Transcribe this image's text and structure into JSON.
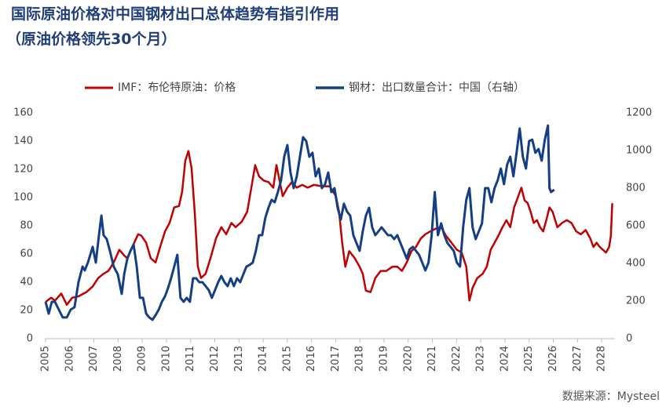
{
  "chart_data": {
    "type": "line",
    "title": "国际原油价格对中国钢材出口总体趋势有指引作用",
    "subtitle": "（原油价格领先30个月）",
    "source": "数据来源：Mysteel",
    "legend": "top",
    "xlim": [
      2005,
      2028.55
    ],
    "xticks": [
      2005,
      2006,
      2007,
      2008,
      2009,
      2010,
      2011,
      2012,
      2013,
      2014,
      2015,
      2016,
      2017,
      2018,
      2019,
      2020,
      2021,
      2022,
      2023,
      2024,
      2025,
      2026,
      2027,
      2028
    ],
    "ylim": [
      0,
      160
    ],
    "yticks": [
      0,
      20,
      40,
      60,
      80,
      100,
      120,
      140,
      160
    ],
    "y2lim": [
      0,
      1200
    ],
    "y2ticks": [
      0,
      200,
      400,
      600,
      800,
      1000,
      1200
    ],
    "series": [
      {
        "name": "IMF：布伦特原油：价格",
        "color": "#c00000",
        "x": [
          2005.0,
          2005.23,
          2005.39,
          2005.65,
          2005.88,
          2006.1,
          2006.36,
          2006.69,
          2006.95,
          2007.18,
          2007.4,
          2007.6,
          2007.82,
          2008.05,
          2008.25,
          2008.38,
          2008.64,
          2008.83,
          2008.96,
          2009.16,
          2009.35,
          2009.55,
          2009.74,
          2009.94,
          2010.13,
          2010.32,
          2010.52,
          2010.65,
          2010.78,
          2010.91,
          2011.04,
          2011.17,
          2011.3,
          2011.43,
          2011.62,
          2011.82,
          2012.05,
          2012.27,
          2012.47,
          2012.69,
          2012.86,
          2013.12,
          2013.34,
          2013.51,
          2013.67,
          2013.83,
          2014.03,
          2014.22,
          2014.42,
          2014.55,
          2014.68,
          2014.81,
          2015.0,
          2015.19,
          2015.39,
          2015.62,
          2015.84,
          2016.1,
          2016.43,
          2016.75,
          2017.01,
          2017.14,
          2017.27,
          2017.4,
          2017.56,
          2017.79,
          2017.99,
          2018.12,
          2018.25,
          2018.44,
          2018.64,
          2018.86,
          2019.09,
          2019.35,
          2019.55,
          2019.74,
          2019.94,
          2020.13,
          2020.32,
          2020.52,
          2020.71,
          2020.91,
          2021.14,
          2021.36,
          2021.56,
          2021.79,
          2022.01,
          2022.21,
          2022.4,
          2022.53,
          2022.66,
          2022.86,
          2023.08,
          2023.25,
          2023.41,
          2023.57,
          2023.73,
          2023.9,
          2024.06,
          2024.22,
          2024.38,
          2024.55,
          2024.68,
          2024.81,
          2024.94,
          2025.06,
          2025.19,
          2025.32,
          2025.45,
          2025.58,
          2025.71,
          2025.84,
          2025.97,
          2026.17,
          2026.36,
          2026.56,
          2026.75,
          2026.95,
          2027.14,
          2027.34,
          2027.53,
          2027.66,
          2027.79,
          2027.92,
          2028.05,
          2028.18,
          2028.31,
          2028.38,
          2028.44
        ],
        "values": [
          26,
          29,
          27,
          32,
          24,
          29,
          30,
          33,
          37,
          43,
          46,
          48,
          54,
          63,
          59,
          57,
          67,
          74,
          73,
          68,
          57,
          54,
          65,
          76,
          82,
          93,
          94,
          104,
          126,
          133,
          121,
          90,
          51,
          43,
          46,
          57,
          71,
          79,
          74,
          82,
          79,
          83,
          90,
          107,
          123,
          115,
          112,
          111,
          107,
          123,
          112,
          101,
          107,
          111,
          107,
          109,
          107,
          109,
          108,
          108,
          101,
          90,
          68,
          51,
          62,
          57,
          51,
          46,
          34,
          33,
          43,
          48,
          48,
          51,
          51,
          48,
          54,
          62,
          65,
          71,
          74,
          76,
          78,
          79,
          73,
          68,
          63,
          61,
          51,
          27,
          36,
          43,
          46,
          51,
          63,
          68,
          73,
          79,
          84,
          79,
          93,
          101,
          107,
          98,
          96,
          90,
          82,
          84,
          79,
          76,
          84,
          93,
          90,
          79,
          82,
          84,
          82,
          76,
          74,
          77,
          71,
          65,
          68,
          65,
          63,
          61,
          65,
          73,
          96
        ]
      },
      {
        "name": "钢材：出口数量合计：中国（右轴）",
        "color": "#143f85",
        "axis": "y2",
        "x": [
          2005.0,
          2005.13,
          2005.26,
          2005.39,
          2005.55,
          2005.71,
          2005.88,
          2006.04,
          2006.2,
          2006.36,
          2006.53,
          2006.62,
          2006.75,
          2006.95,
          2007.08,
          2007.21,
          2007.31,
          2007.4,
          2007.53,
          2007.66,
          2007.82,
          2007.99,
          2008.15,
          2008.25,
          2008.38,
          2008.51,
          2008.64,
          2008.77,
          2008.9,
          2009.03,
          2009.16,
          2009.29,
          2009.42,
          2009.55,
          2009.68,
          2009.81,
          2009.94,
          2010.06,
          2010.19,
          2010.32,
          2010.45,
          2010.58,
          2010.71,
          2010.84,
          2010.97,
          2011.1,
          2011.23,
          2011.36,
          2011.49,
          2011.62,
          2011.75,
          2011.88,
          2012.01,
          2012.14,
          2012.27,
          2012.4,
          2012.53,
          2012.66,
          2012.79,
          2012.92,
          2013.05,
          2013.18,
          2013.31,
          2013.44,
          2013.57,
          2013.7,
          2013.83,
          2013.96,
          2014.09,
          2014.22,
          2014.35,
          2014.48,
          2014.61,
          2014.74,
          2014.87,
          2015.0,
          2015.13,
          2015.26,
          2015.39,
          2015.52,
          2015.65,
          2015.78,
          2015.91,
          2016.04,
          2016.17,
          2016.3,
          2016.43,
          2016.56,
          2016.69,
          2016.82,
          2016.95,
          2017.08,
          2017.21,
          2017.34,
          2017.47,
          2017.6,
          2017.73,
          2017.86,
          2017.99,
          2018.12,
          2018.25,
          2018.38,
          2018.51,
          2018.64,
          2018.77,
          2018.9,
          2019.03,
          2019.16,
          2019.29,
          2019.42,
          2019.55,
          2019.68,
          2019.81,
          2019.94,
          2020.06,
          2020.19,
          2020.32,
          2020.45,
          2020.58,
          2020.71,
          2020.84,
          2020.97,
          2021.1,
          2021.23,
          2021.36,
          2021.49,
          2021.62,
          2021.75,
          2021.88,
          2022.01,
          2022.14,
          2022.27,
          2022.4,
          2022.53,
          2022.66,
          2022.79,
          2022.92,
          2023.05,
          2023.18,
          2023.31,
          2023.44,
          2023.57,
          2023.7,
          2023.83,
          2023.96,
          2024.09,
          2024.22,
          2024.35,
          2024.48,
          2024.61,
          2024.74,
          2024.87,
          2025.0,
          2025.13,
          2025.26,
          2025.39,
          2025.52,
          2025.65,
          2025.78,
          2025.84,
          2025.91,
          2026.04
        ],
        "values": [
          196,
          133,
          196,
          196,
          154,
          113,
          113,
          154,
          167,
          300,
          383,
          363,
          404,
          488,
          404,
          550,
          654,
          550,
          529,
          467,
          383,
          342,
          238,
          342,
          425,
          467,
          500,
          383,
          217,
          217,
          133,
          113,
          100,
          125,
          154,
          196,
          225,
          267,
          321,
          383,
          446,
          217,
          196,
          217,
          196,
          321,
          321,
          300,
          300,
          279,
          258,
          217,
          258,
          300,
          333,
          300,
          279,
          321,
          279,
          321,
          300,
          342,
          383,
          392,
          404,
          467,
          550,
          550,
          642,
          696,
          738,
          725,
          779,
          842,
          967,
          1029,
          883,
          800,
          863,
          967,
          1071,
          1050,
          967,
          988,
          863,
          904,
          800,
          821,
          883,
          779,
          800,
          696,
          633,
          717,
          675,
          654,
          550,
          508,
          467,
          571,
          654,
          696,
          592,
          550,
          571,
          592,
          571,
          550,
          550,
          529,
          550,
          508,
          467,
          425,
          475,
          488,
          467,
          446,
          404,
          363,
          404,
          550,
          779,
          550,
          613,
          550,
          508,
          488,
          467,
          404,
          383,
          592,
          738,
          800,
          592,
          529,
          571,
          613,
          800,
          800,
          725,
          800,
          842,
          904,
          821,
          925,
          967,
          863,
          988,
          1117,
          967,
          904,
          1050,
          1058,
          988,
          1008,
          946,
          1058,
          1133,
          800,
          779,
          792
        ]
      }
    ]
  }
}
